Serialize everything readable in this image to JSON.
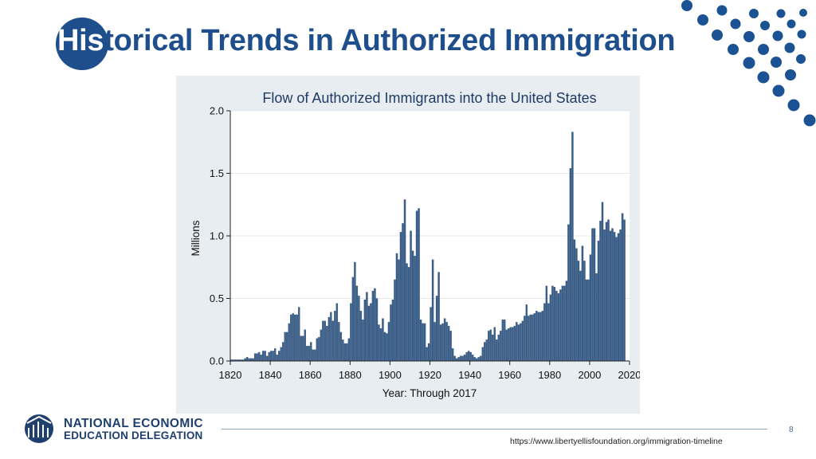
{
  "slide": {
    "title_highlight": "His",
    "title_rest": "torical Trends in Authorized Immigration",
    "page_number": "8",
    "source_url": "https://www.libertyellisfoundation.org/immigration-timeline"
  },
  "logo": {
    "line1": "NATIONAL ECONOMIC",
    "line2": "EDUCATION DELEGATION"
  },
  "colors": {
    "title": "#1f4e8c",
    "bar": "#3a5f8a",
    "panel": "#e8edf1",
    "dots": "#1a5293"
  },
  "chart_data": {
    "type": "bar",
    "title": "Flow of Authorized Immigrants into the United States",
    "xlabel": "Year: Through 2017",
    "ylabel": "Millions",
    "xlim": [
      1820,
      2020
    ],
    "ylim": [
      0,
      2.0
    ],
    "xticks": [
      "1820",
      "1840",
      "1860",
      "1880",
      "1900",
      "1920",
      "1940",
      "1960",
      "1980",
      "2000",
      "2020"
    ],
    "yticks": [
      "0.0",
      "0.5",
      "1.0",
      "1.5",
      "2.0"
    ],
    "grid": true,
    "bar_start_year": 1820,
    "values": [
      0.01,
      0.01,
      0.01,
      0.01,
      0.01,
      0.01,
      0.01,
      0.02,
      0.03,
      0.02,
      0.02,
      0.02,
      0.06,
      0.06,
      0.07,
      0.05,
      0.08,
      0.08,
      0.04,
      0.07,
      0.08,
      0.08,
      0.1,
      0.05,
      0.08,
      0.11,
      0.15,
      0.23,
      0.23,
      0.3,
      0.37,
      0.38,
      0.37,
      0.37,
      0.43,
      0.2,
      0.2,
      0.25,
      0.12,
      0.12,
      0.15,
      0.09,
      0.09,
      0.18,
      0.19,
      0.25,
      0.32,
      0.32,
      0.28,
      0.35,
      0.39,
      0.32,
      0.4,
      0.46,
      0.31,
      0.23,
      0.17,
      0.14,
      0.14,
      0.18,
      0.46,
      0.67,
      0.79,
      0.6,
      0.52,
      0.4,
      0.33,
      0.49,
      0.55,
      0.44,
      0.46,
      0.56,
      0.58,
      0.5,
      0.29,
      0.26,
      0.34,
      0.23,
      0.22,
      0.31,
      0.45,
      0.49,
      0.65,
      0.86,
      0.81,
      1.03,
      1.1,
      1.29,
      0.78,
      0.75,
      1.04,
      0.88,
      0.84,
      1.2,
      1.22,
      0.33,
      0.3,
      0.3,
      0.11,
      0.14,
      0.43,
      0.81,
      0.31,
      0.52,
      0.71,
      0.29,
      0.3,
      0.34,
      0.31,
      0.28,
      0.24,
      0.1,
      0.04,
      0.02,
      0.03,
      0.04,
      0.04,
      0.05,
      0.07,
      0.08,
      0.07,
      0.05,
      0.03,
      0.02,
      0.03,
      0.04,
      0.11,
      0.15,
      0.17,
      0.24,
      0.25,
      0.21,
      0.27,
      0.17,
      0.21,
      0.24,
      0.33,
      0.33,
      0.25,
      0.26,
      0.27,
      0.27,
      0.28,
      0.31,
      0.29,
      0.3,
      0.32,
      0.36,
      0.45,
      0.36,
      0.37,
      0.37,
      0.38,
      0.4,
      0.39,
      0.39,
      0.4,
      0.46,
      0.6,
      0.46,
      0.53,
      0.6,
      0.59,
      0.56,
      0.54,
      0.57,
      0.6,
      0.6,
      0.64,
      1.09,
      1.54,
      1.83,
      0.97,
      0.9,
      0.8,
      0.72,
      0.92,
      0.8,
      0.65,
      0.65,
      0.85,
      1.06,
      1.06,
      0.7,
      0.96,
      1.12,
      1.27,
      1.05,
      1.11,
      1.13,
      1.04,
      1.06,
      1.03,
      0.99,
      1.02,
      1.05,
      1.18,
      1.13
    ]
  }
}
